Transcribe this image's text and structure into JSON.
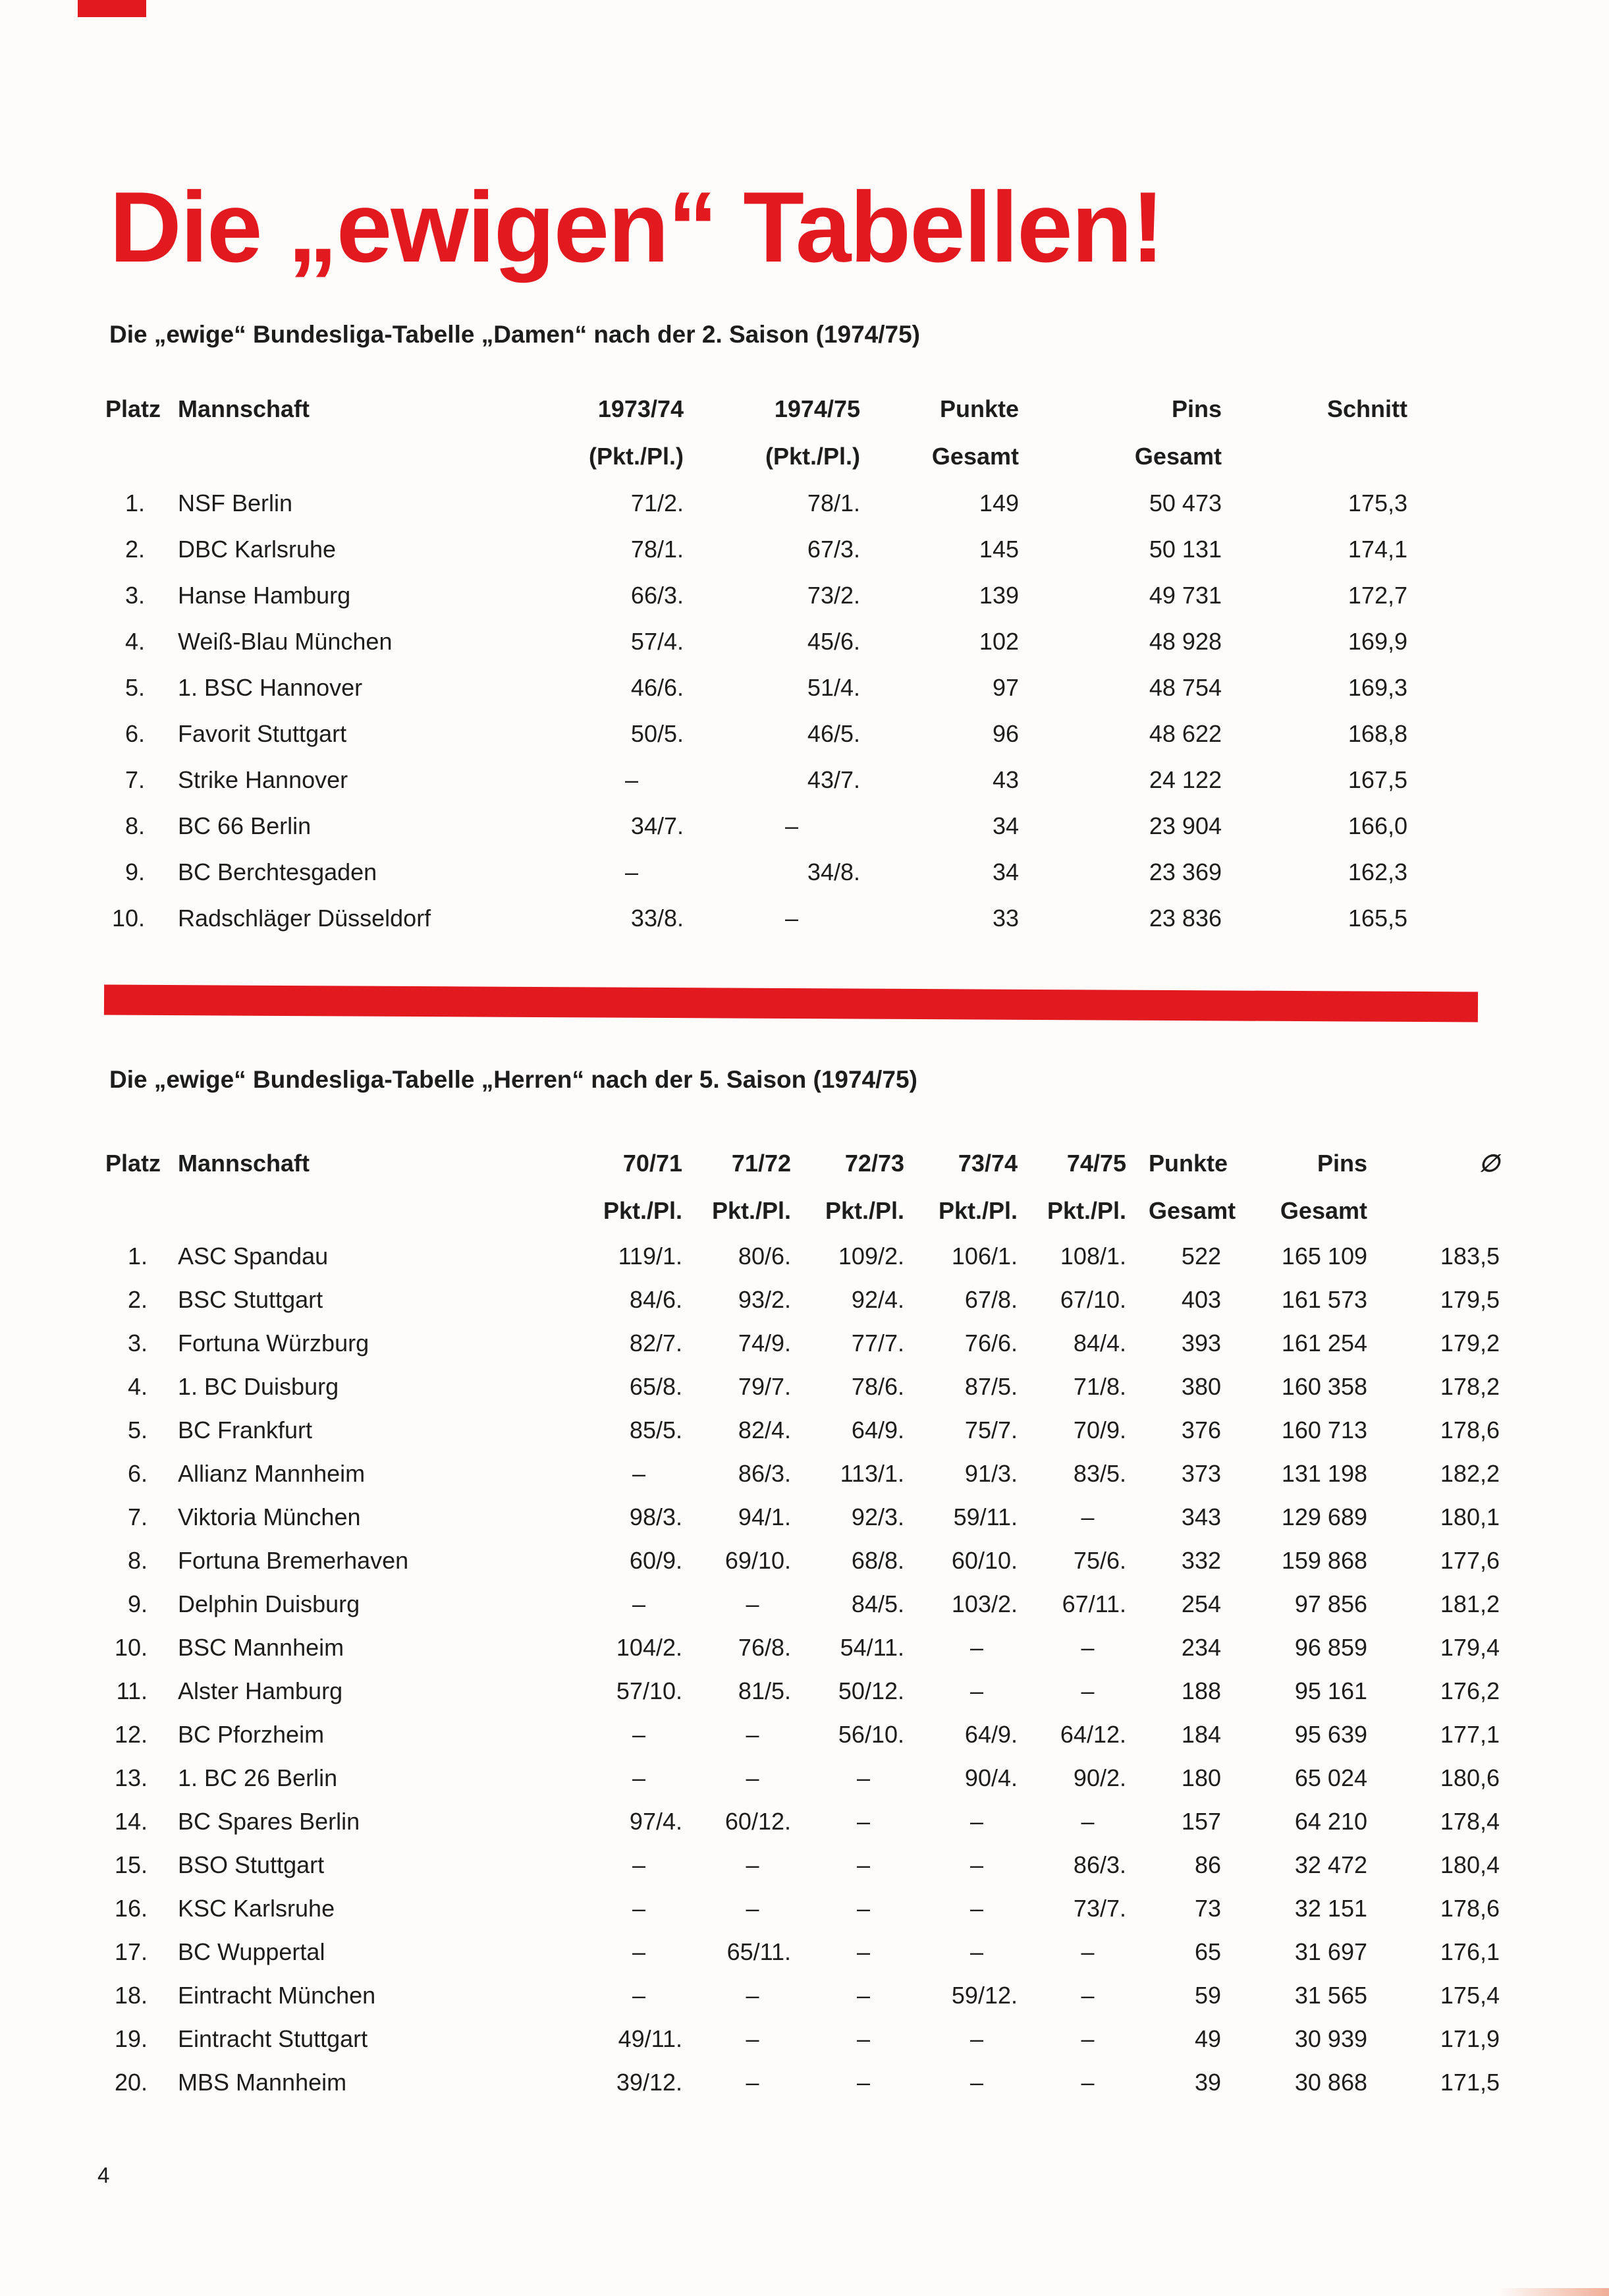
{
  "page": {
    "title": "Die „ewigen“ Tabellen!",
    "page_number": "4",
    "accent_color": "#e2191f"
  },
  "damen": {
    "subtitle": "Die „ewige“ Bundesliga-Tabelle „Damen“ nach der 2. Saison (1974/75)",
    "header": {
      "platz": "Platz",
      "mannschaft": "Mannschaft",
      "columns": [
        {
          "line1": "1973/74",
          "line2": "(Pkt./Pl.)"
        },
        {
          "line1": "1974/75",
          "line2": "(Pkt./Pl.)"
        },
        {
          "line1": "Punkte",
          "line2": "Gesamt"
        },
        {
          "line1": "Pins",
          "line2": "Gesamt"
        },
        {
          "line1": "Schnitt",
          "line2": ""
        }
      ]
    },
    "rows": [
      {
        "platz": "1.",
        "mannschaft": "NSF Berlin",
        "values": [
          "71/2.",
          "78/1.",
          "149",
          "50 473",
          "175,3"
        ]
      },
      {
        "platz": "2.",
        "mannschaft": "DBC Karlsruhe",
        "values": [
          "78/1.",
          "67/3.",
          "145",
          "50 131",
          "174,1"
        ]
      },
      {
        "platz": "3.",
        "mannschaft": "Hanse Hamburg",
        "values": [
          "66/3.",
          "73/2.",
          "139",
          "49 731",
          "172,7"
        ]
      },
      {
        "platz": "4.",
        "mannschaft": "Weiß-Blau München",
        "values": [
          "57/4.",
          "45/6.",
          "102",
          "48 928",
          "169,9"
        ]
      },
      {
        "platz": "5.",
        "mannschaft": "1. BSC Hannover",
        "values": [
          "46/6.",
          "51/4.",
          "97",
          "48 754",
          "169,3"
        ]
      },
      {
        "platz": "6.",
        "mannschaft": "Favorit Stuttgart",
        "values": [
          "50/5.",
          "46/5.",
          "96",
          "48 622",
          "168,8"
        ]
      },
      {
        "platz": "7.",
        "mannschaft": "Strike Hannover",
        "values": [
          "–",
          "43/7.",
          "43",
          "24 122",
          "167,5"
        ]
      },
      {
        "platz": "8.",
        "mannschaft": "BC 66 Berlin",
        "values": [
          "34/7.",
          "–",
          "34",
          "23 904",
          "166,0"
        ]
      },
      {
        "platz": "9.",
        "mannschaft": "BC Berchtesgaden",
        "values": [
          "–",
          "34/8.",
          "34",
          "23 369",
          "162,3"
        ]
      },
      {
        "platz": "10.",
        "mannschaft": "Radschläger Düsseldorf",
        "values": [
          "33/8.",
          "–",
          "33",
          "23 836",
          "165,5"
        ]
      }
    ]
  },
  "herren": {
    "subtitle": "Die „ewige“ Bundesliga-Tabelle „Herren“ nach der 5. Saison (1974/75)",
    "header": {
      "platz": "Platz",
      "mannschaft": "Mannschaft",
      "columns": [
        {
          "line1": "70/71",
          "line2": "Pkt./Pl."
        },
        {
          "line1": "71/72",
          "line2": "Pkt./Pl."
        },
        {
          "line1": "72/73",
          "line2": "Pkt./Pl."
        },
        {
          "line1": "73/74",
          "line2": "Pkt./Pl."
        },
        {
          "line1": "74/75",
          "line2": "Pkt./Pl."
        },
        {
          "line1": "Punkte",
          "line2": "Gesamt"
        },
        {
          "line1": "Pins",
          "line2": "Gesamt"
        },
        {
          "line1": "∅",
          "line2": ""
        }
      ]
    },
    "rows": [
      {
        "platz": "1.",
        "mannschaft": "ASC Spandau",
        "values": [
          "119/1.",
          "80/6.",
          "109/2.",
          "106/1.",
          "108/1.",
          "522",
          "165 109",
          "183,5"
        ]
      },
      {
        "platz": "2.",
        "mannschaft": "BSC Stuttgart",
        "values": [
          "84/6.",
          "93/2.",
          "92/4.",
          "67/8.",
          "67/10.",
          "403",
          "161 573",
          "179,5"
        ]
      },
      {
        "platz": "3.",
        "mannschaft": "Fortuna Würzburg",
        "values": [
          "82/7.",
          "74/9.",
          "77/7.",
          "76/6.",
          "84/4.",
          "393",
          "161 254",
          "179,2"
        ]
      },
      {
        "platz": "4.",
        "mannschaft": "1. BC Duisburg",
        "values": [
          "65/8.",
          "79/7.",
          "78/6.",
          "87/5.",
          "71/8.",
          "380",
          "160 358",
          "178,2"
        ]
      },
      {
        "platz": "5.",
        "mannschaft": "BC Frankfurt",
        "values": [
          "85/5.",
          "82/4.",
          "64/9.",
          "75/7.",
          "70/9.",
          "376",
          "160 713",
          "178,6"
        ]
      },
      {
        "platz": "6.",
        "mannschaft": "Allianz Mannheim",
        "values": [
          "–",
          "86/3.",
          "113/1.",
          "91/3.",
          "83/5.",
          "373",
          "131 198",
          "182,2"
        ]
      },
      {
        "platz": "7.",
        "mannschaft": "Viktoria München",
        "values": [
          "98/3.",
          "94/1.",
          "92/3.",
          "59/11.",
          "–",
          "343",
          "129 689",
          "180,1"
        ]
      },
      {
        "platz": "8.",
        "mannschaft": "Fortuna Bremerhaven",
        "values": [
          "60/9.",
          "69/10.",
          "68/8.",
          "60/10.",
          "75/6.",
          "332",
          "159 868",
          "177,6"
        ]
      },
      {
        "platz": "9.",
        "mannschaft": "Delphin Duisburg",
        "values": [
          "–",
          "–",
          "84/5.",
          "103/2.",
          "67/11.",
          "254",
          "97 856",
          "181,2"
        ]
      },
      {
        "platz": "10.",
        "mannschaft": "BSC Mannheim",
        "values": [
          "104/2.",
          "76/8.",
          "54/11.",
          "–",
          "–",
          "234",
          "96 859",
          "179,4"
        ]
      },
      {
        "platz": "11.",
        "mannschaft": "Alster Hamburg",
        "values": [
          "57/10.",
          "81/5.",
          "50/12.",
          "–",
          "–",
          "188",
          "95 161",
          "176,2"
        ]
      },
      {
        "platz": "12.",
        "mannschaft": "BC Pforzheim",
        "values": [
          "–",
          "–",
          "56/10.",
          "64/9.",
          "64/12.",
          "184",
          "95 639",
          "177,1"
        ]
      },
      {
        "platz": "13.",
        "mannschaft": "1. BC 26 Berlin",
        "values": [
          "–",
          "–",
          "–",
          "90/4.",
          "90/2.",
          "180",
          "65 024",
          "180,6"
        ]
      },
      {
        "platz": "14.",
        "mannschaft": "BC Spares Berlin",
        "values": [
          "97/4.",
          "60/12.",
          "–",
          "–",
          "–",
          "157",
          "64 210",
          "178,4"
        ]
      },
      {
        "platz": "15.",
        "mannschaft": "BSO Stuttgart",
        "values": [
          "–",
          "–",
          "–",
          "–",
          "86/3.",
          "86",
          "32 472",
          "180,4"
        ]
      },
      {
        "platz": "16.",
        "mannschaft": "KSC Karlsruhe",
        "values": [
          "–",
          "–",
          "–",
          "–",
          "73/7.",
          "73",
          "32 151",
          "178,6"
        ]
      },
      {
        "platz": "17.",
        "mannschaft": "BC Wuppertal",
        "values": [
          "–",
          "65/11.",
          "–",
          "–",
          "–",
          "65",
          "31 697",
          "176,1"
        ]
      },
      {
        "platz": "18.",
        "mannschaft": "Eintracht München",
        "values": [
          "–",
          "–",
          "–",
          "59/12.",
          "–",
          "59",
          "31 565",
          "175,4"
        ]
      },
      {
        "platz": "19.",
        "mannschaft": "Eintracht Stuttgart",
        "values": [
          "49/11.",
          "–",
          "–",
          "–",
          "–",
          "49",
          "30 939",
          "171,9"
        ]
      },
      {
        "platz": "20.",
        "mannschaft": "MBS Mannheim",
        "values": [
          "39/12.",
          "–",
          "–",
          "–",
          "–",
          "39",
          "30 868",
          "171,5"
        ]
      }
    ]
  }
}
